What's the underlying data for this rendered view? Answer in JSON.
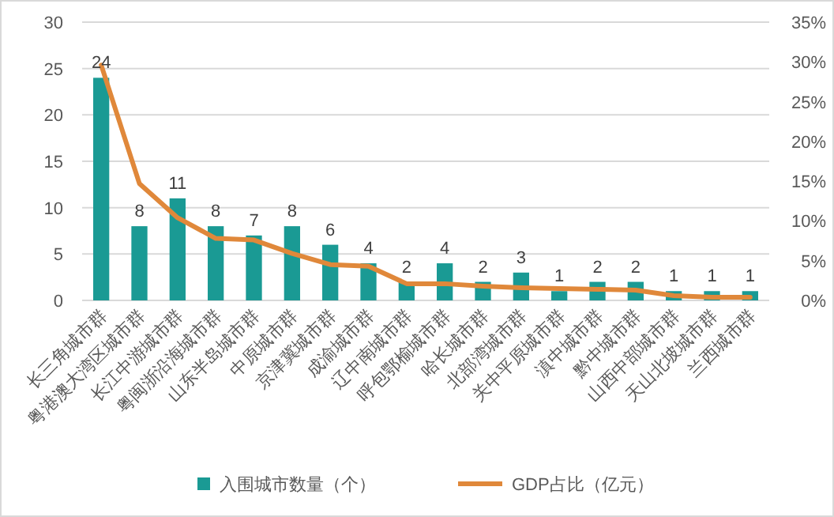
{
  "chart_data": {
    "type": "bar",
    "categories": [
      "长三角城市群",
      "粤港澳大湾区城市群",
      "长江中游城市群",
      "粤闽浙沿海城市群",
      "山东半岛城市群",
      "中原城市群",
      "京津冀城市群",
      "成渝城市群",
      "辽中南城市群",
      "呼包鄂榆城市群",
      "哈长城市群",
      "北部湾城市群",
      "关中平原城市群",
      "滇中城市群",
      "黔中城市群",
      "山西中部城市群",
      "天山北坡城市群",
      "兰西城市群"
    ],
    "series": [
      {
        "name": "入围城市数量（个）",
        "color": "#1a9a94",
        "values": [
          24,
          8,
          11,
          8,
          7,
          8,
          6,
          4,
          2,
          4,
          2,
          3,
          1,
          2,
          2,
          1,
          1,
          1
        ],
        "data_labels": true
      },
      {
        "name": "GDP占比（亿元）",
        "type": "line",
        "axis": "y2",
        "color": "#e0883a",
        "values": [
          29.6,
          14.7,
          10.4,
          7.8,
          7.6,
          5.9,
          4.5,
          4.3,
          2.1,
          2.1,
          1.8,
          1.6,
          1.5,
          1.4,
          1.3,
          0.6,
          0.4,
          0.4
        ]
      }
    ],
    "ylim": [
      0,
      30
    ],
    "yticks": [
      0,
      5,
      10,
      15,
      20,
      25,
      30
    ],
    "y2lim": [
      0,
      35
    ],
    "y2ticks": [
      {
        "value": 0,
        "label": "0%"
      },
      {
        "value": 5,
        "label": "5%"
      },
      {
        "value": 10,
        "label": "10%"
      },
      {
        "value": 15,
        "label": "15%"
      },
      {
        "value": 20,
        "label": "20%"
      },
      {
        "value": 25,
        "label": "25%"
      },
      {
        "value": 30,
        "label": "30%"
      },
      {
        "value": 35,
        "label": "35%"
      }
    ],
    "grid": "y",
    "legend": "bottom",
    "marker": "none",
    "line_style": "solid"
  }
}
